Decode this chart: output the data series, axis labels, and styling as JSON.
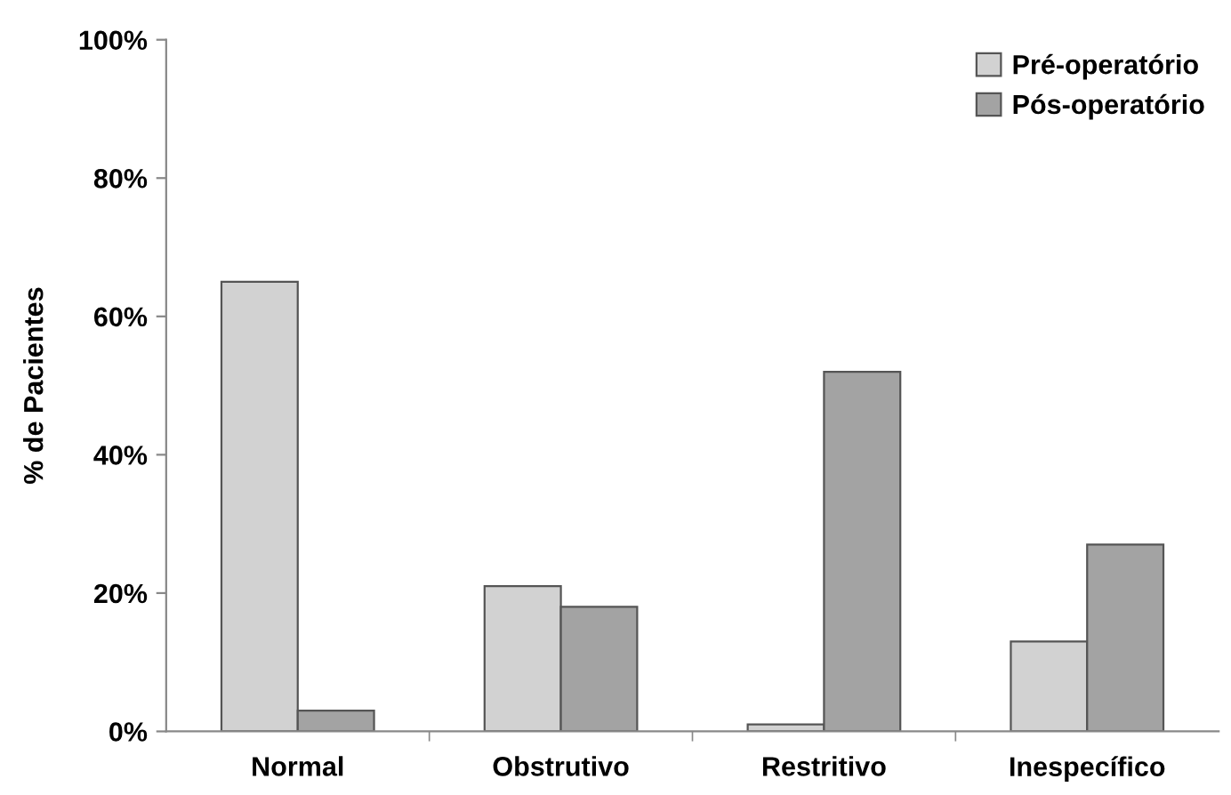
{
  "chart_data": {
    "type": "bar",
    "ylabel": "% de Pacientes",
    "categories": [
      "Normal",
      "Obstrutivo",
      "Restritivo",
      "Inespecífico"
    ],
    "series": [
      {
        "name": "Pré-operatório",
        "color": "#d2d2d2",
        "values": [
          65,
          21,
          1,
          13
        ]
      },
      {
        "name": "Pós-operatório",
        "color": "#a3a3a3",
        "values": [
          3,
          18,
          52,
          27
        ]
      }
    ],
    "ylim": [
      0,
      100
    ],
    "yticks": [
      {
        "value": 0,
        "label": "0%"
      },
      {
        "value": 20,
        "label": "20%"
      },
      {
        "value": 40,
        "label": "40%"
      },
      {
        "value": 60,
        "label": "60%"
      },
      {
        "value": 80,
        "label": "80%"
      },
      {
        "value": 100,
        "label": "100%"
      }
    ],
    "grid": false,
    "legend": "top right"
  }
}
